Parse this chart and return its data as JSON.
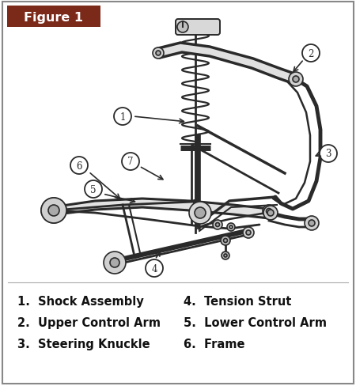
{
  "title": "Figure 1",
  "title_bg": "#7B2A1A",
  "title_text_color": "#FFFFFF",
  "border_color": "#888888",
  "bg_color": "#FFFFFF",
  "diagram_bg": "#F0EEE8",
  "legend_items_left": [
    "1.  Shock Assembly",
    "2.  Upper Control Arm",
    "3.  Steering Knuckle"
  ],
  "legend_items_right": [
    "4.  Tension Strut",
    "5.  Lower Control Arm",
    "6.  Frame"
  ],
  "legend_fontsize": 10.5,
  "legend_text_color": "#111111",
  "figsize": [
    4.5,
    4.89
  ],
  "dpi": 100,
  "line_color": "#2a2a2a",
  "callout_font": 8.5
}
